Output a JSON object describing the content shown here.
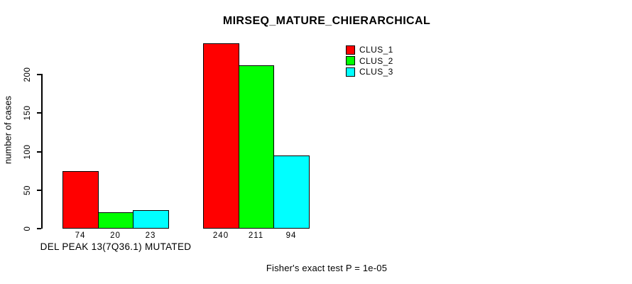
{
  "chart_data": {
    "type": "bar",
    "title": "MIRSEQ_MATURE_CHIERARCHICAL",
    "ylabel": "number of cases",
    "xlabel": "",
    "yticks": [
      0,
      50,
      100,
      150,
      200
    ],
    "ylim": [
      0,
      243
    ],
    "grid": false,
    "legend_position": "top-right",
    "categories": [
      "DEL PEAK 13(7Q36.1) MUTATED",
      ""
    ],
    "series": [
      {
        "name": "CLUS_1",
        "color": "#FF0000",
        "values": [
          74,
          240
        ]
      },
      {
        "name": "CLUS_2",
        "color": "#00FF00",
        "values": [
          20,
          211
        ]
      },
      {
        "name": "CLUS_3",
        "color": "#00FFFF",
        "values": [
          23,
          94
        ]
      }
    ],
    "show_bar_values": true,
    "annotation": "Fisher's exact test P = 1e-05",
    "colors": {
      "background": "#FFFFFF",
      "foreground": "#000000"
    }
  }
}
